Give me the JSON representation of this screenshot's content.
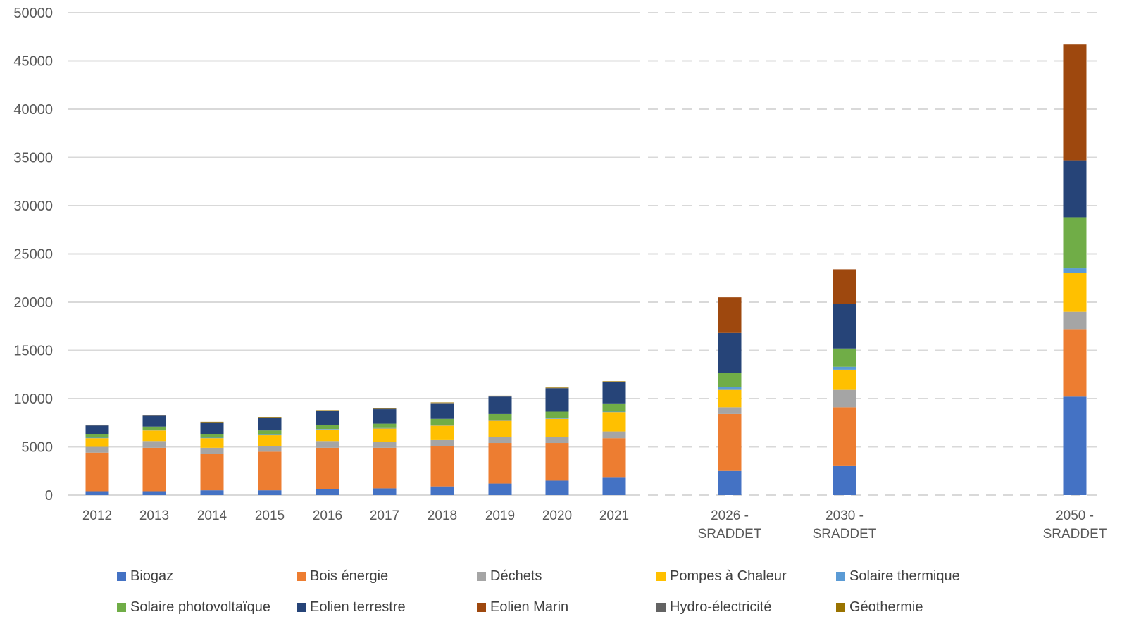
{
  "chart_data": {
    "type": "bar",
    "stacked": true,
    "ylim": [
      0,
      50000
    ],
    "yticks": [
      0,
      5000,
      10000,
      15000,
      20000,
      25000,
      30000,
      35000,
      40000,
      45000,
      50000
    ],
    "grid": true,
    "legend_position": "bottom",
    "categories": [
      "2012",
      "2013",
      "2014",
      "2015",
      "2016",
      "2017",
      "2018",
      "2019",
      "2020",
      "2021",
      "2026 - SRADDET",
      "2030 - SRADDET",
      "2050 - SRADDET"
    ],
    "category_label_lines": [
      [
        "2012"
      ],
      [
        "2013"
      ],
      [
        "2014"
      ],
      [
        "2015"
      ],
      [
        "2016"
      ],
      [
        "2017"
      ],
      [
        "2018"
      ],
      [
        "2019"
      ],
      [
        "2020"
      ],
      [
        "2021"
      ],
      [
        "2026 -",
        "SRADDET"
      ],
      [
        "2030 -",
        "SRADDET"
      ],
      [
        "2050 -",
        "SRADDET"
      ]
    ],
    "series": [
      {
        "name": "Biogaz",
        "color": "#4472C4",
        "values": [
          400,
          400,
          500,
          500,
          600,
          700,
          900,
          1200,
          1500,
          1800,
          2500,
          3000,
          10200
        ]
      },
      {
        "name": "Bois énergie",
        "color": "#ED7D31",
        "values": [
          4000,
          4500,
          3800,
          4000,
          4300,
          4200,
          4200,
          4200,
          3900,
          4100,
          5900,
          6100,
          7000
        ]
      },
      {
        "name": "Déchets",
        "color": "#A5A5A5",
        "values": [
          600,
          700,
          600,
          600,
          700,
          600,
          600,
          600,
          600,
          700,
          700,
          1800,
          1800
        ]
      },
      {
        "name": "Pompes à Chaleur",
        "color": "#FFC000",
        "values": [
          900,
          1100,
          1000,
          1100,
          1200,
          1400,
          1500,
          1700,
          1900,
          2000,
          1800,
          2100,
          4000
        ]
      },
      {
        "name": "Solaire thermique",
        "color": "#5B9BD5",
        "values": [
          50,
          50,
          50,
          50,
          50,
          50,
          50,
          50,
          50,
          50,
          300,
          300,
          500
        ]
      },
      {
        "name": "Solaire photovoltaïque",
        "color": "#70AD47",
        "values": [
          350,
          350,
          350,
          450,
          450,
          450,
          650,
          650,
          700,
          850,
          1500,
          1900,
          5300
        ]
      },
      {
        "name": "Eolien terrestre",
        "color": "#264478",
        "values": [
          900,
          1100,
          1200,
          1300,
          1400,
          1500,
          1600,
          1800,
          2400,
          2200,
          4100,
          4600,
          5900
        ]
      },
      {
        "name": "Eolien Marin",
        "color": "#9E480E",
        "values": [
          0,
          0,
          0,
          0,
          0,
          0,
          0,
          0,
          0,
          0,
          3700,
          3600,
          12000
        ]
      },
      {
        "name": "Hydro-électricité",
        "color": "#636363",
        "values": [
          50,
          50,
          50,
          50,
          50,
          50,
          50,
          50,
          50,
          50,
          0,
          0,
          0
        ]
      },
      {
        "name": "Géothermie",
        "color": "#997300",
        "values": [
          50,
          50,
          50,
          50,
          50,
          50,
          50,
          50,
          50,
          50,
          0,
          0,
          0
        ]
      }
    ]
  }
}
